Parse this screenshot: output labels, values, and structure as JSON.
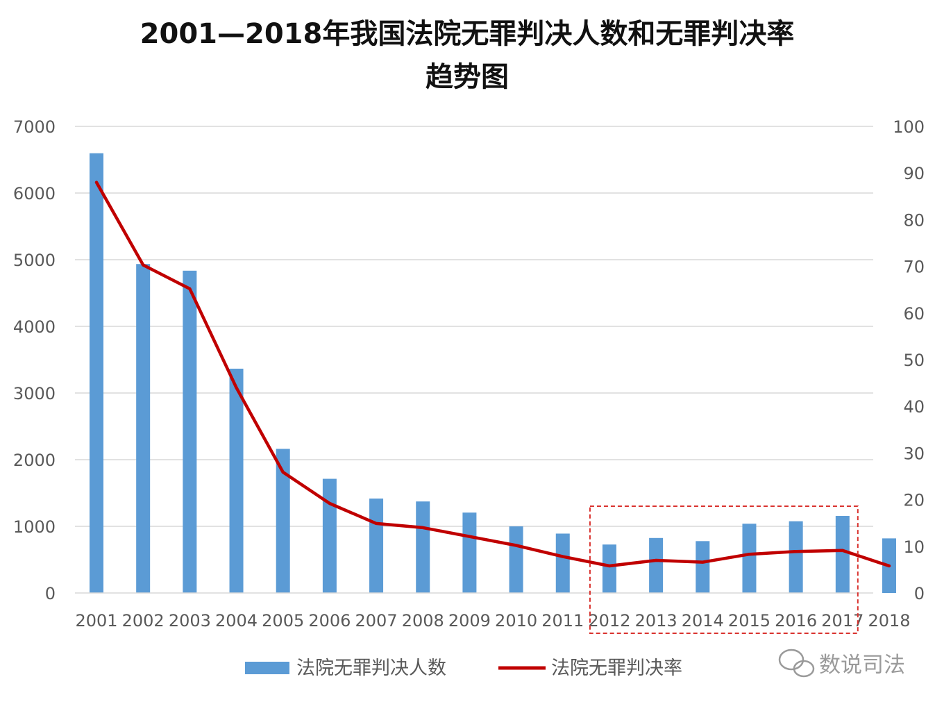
{
  "colors": {
    "bar": "#5b9bd5",
    "line": "#c00000",
    "grid": "#d9d9d9",
    "highlight_box": "#d9322e",
    "watermark": "#9a9a9a"
  },
  "chart_data": {
    "type": "bar",
    "title_line1": "2001—2018年我国法院无罪判决人数和无罪判决率",
    "title_line2": "趋势图",
    "categories": [
      "2001",
      "2002",
      "2003",
      "2004",
      "2005",
      "2006",
      "2007",
      "2008",
      "2009",
      "2010",
      "2011",
      "2012",
      "2013",
      "2014",
      "2015",
      "2016",
      "2017",
      "2018"
    ],
    "series": [
      {
        "name": "法院无罪判决人数",
        "type": "bar",
        "axis": "left",
        "values": [
          6597,
          4935,
          4835,
          3365,
          2162,
          1713,
          1417,
          1373,
          1206,
          999,
          891,
          727,
          825,
          778,
          1039,
          1076,
          1156,
          819
        ]
      },
      {
        "name": "法院无罪判决率",
        "type": "line",
        "axis": "right",
        "values": [
          88,
          70.3,
          65.2,
          44,
          25.9,
          19.2,
          14.9,
          14,
          12.1,
          10.2,
          7.8,
          5.8,
          7,
          6.6,
          8.3,
          8.9,
          9.1,
          5.8
        ]
      }
    ],
    "yleft": {
      "ylim": [
        0,
        7000
      ],
      "ticks": [
        "0",
        "1000",
        "2000",
        "3000",
        "4000",
        "5000",
        "6000",
        "7000"
      ]
    },
    "yright": {
      "ylim": [
        0,
        100
      ],
      "ticks": [
        "0",
        "10",
        "20",
        "30",
        "40",
        "50",
        "60",
        "70",
        "80",
        "90",
        "100"
      ]
    },
    "grid": true,
    "legend_position": "bottom",
    "highlight": {
      "from": "2012",
      "to": "2017",
      "style": "dashed-box"
    }
  },
  "watermark": {
    "text": "数说司法",
    "icon": "wechat-icon"
  }
}
